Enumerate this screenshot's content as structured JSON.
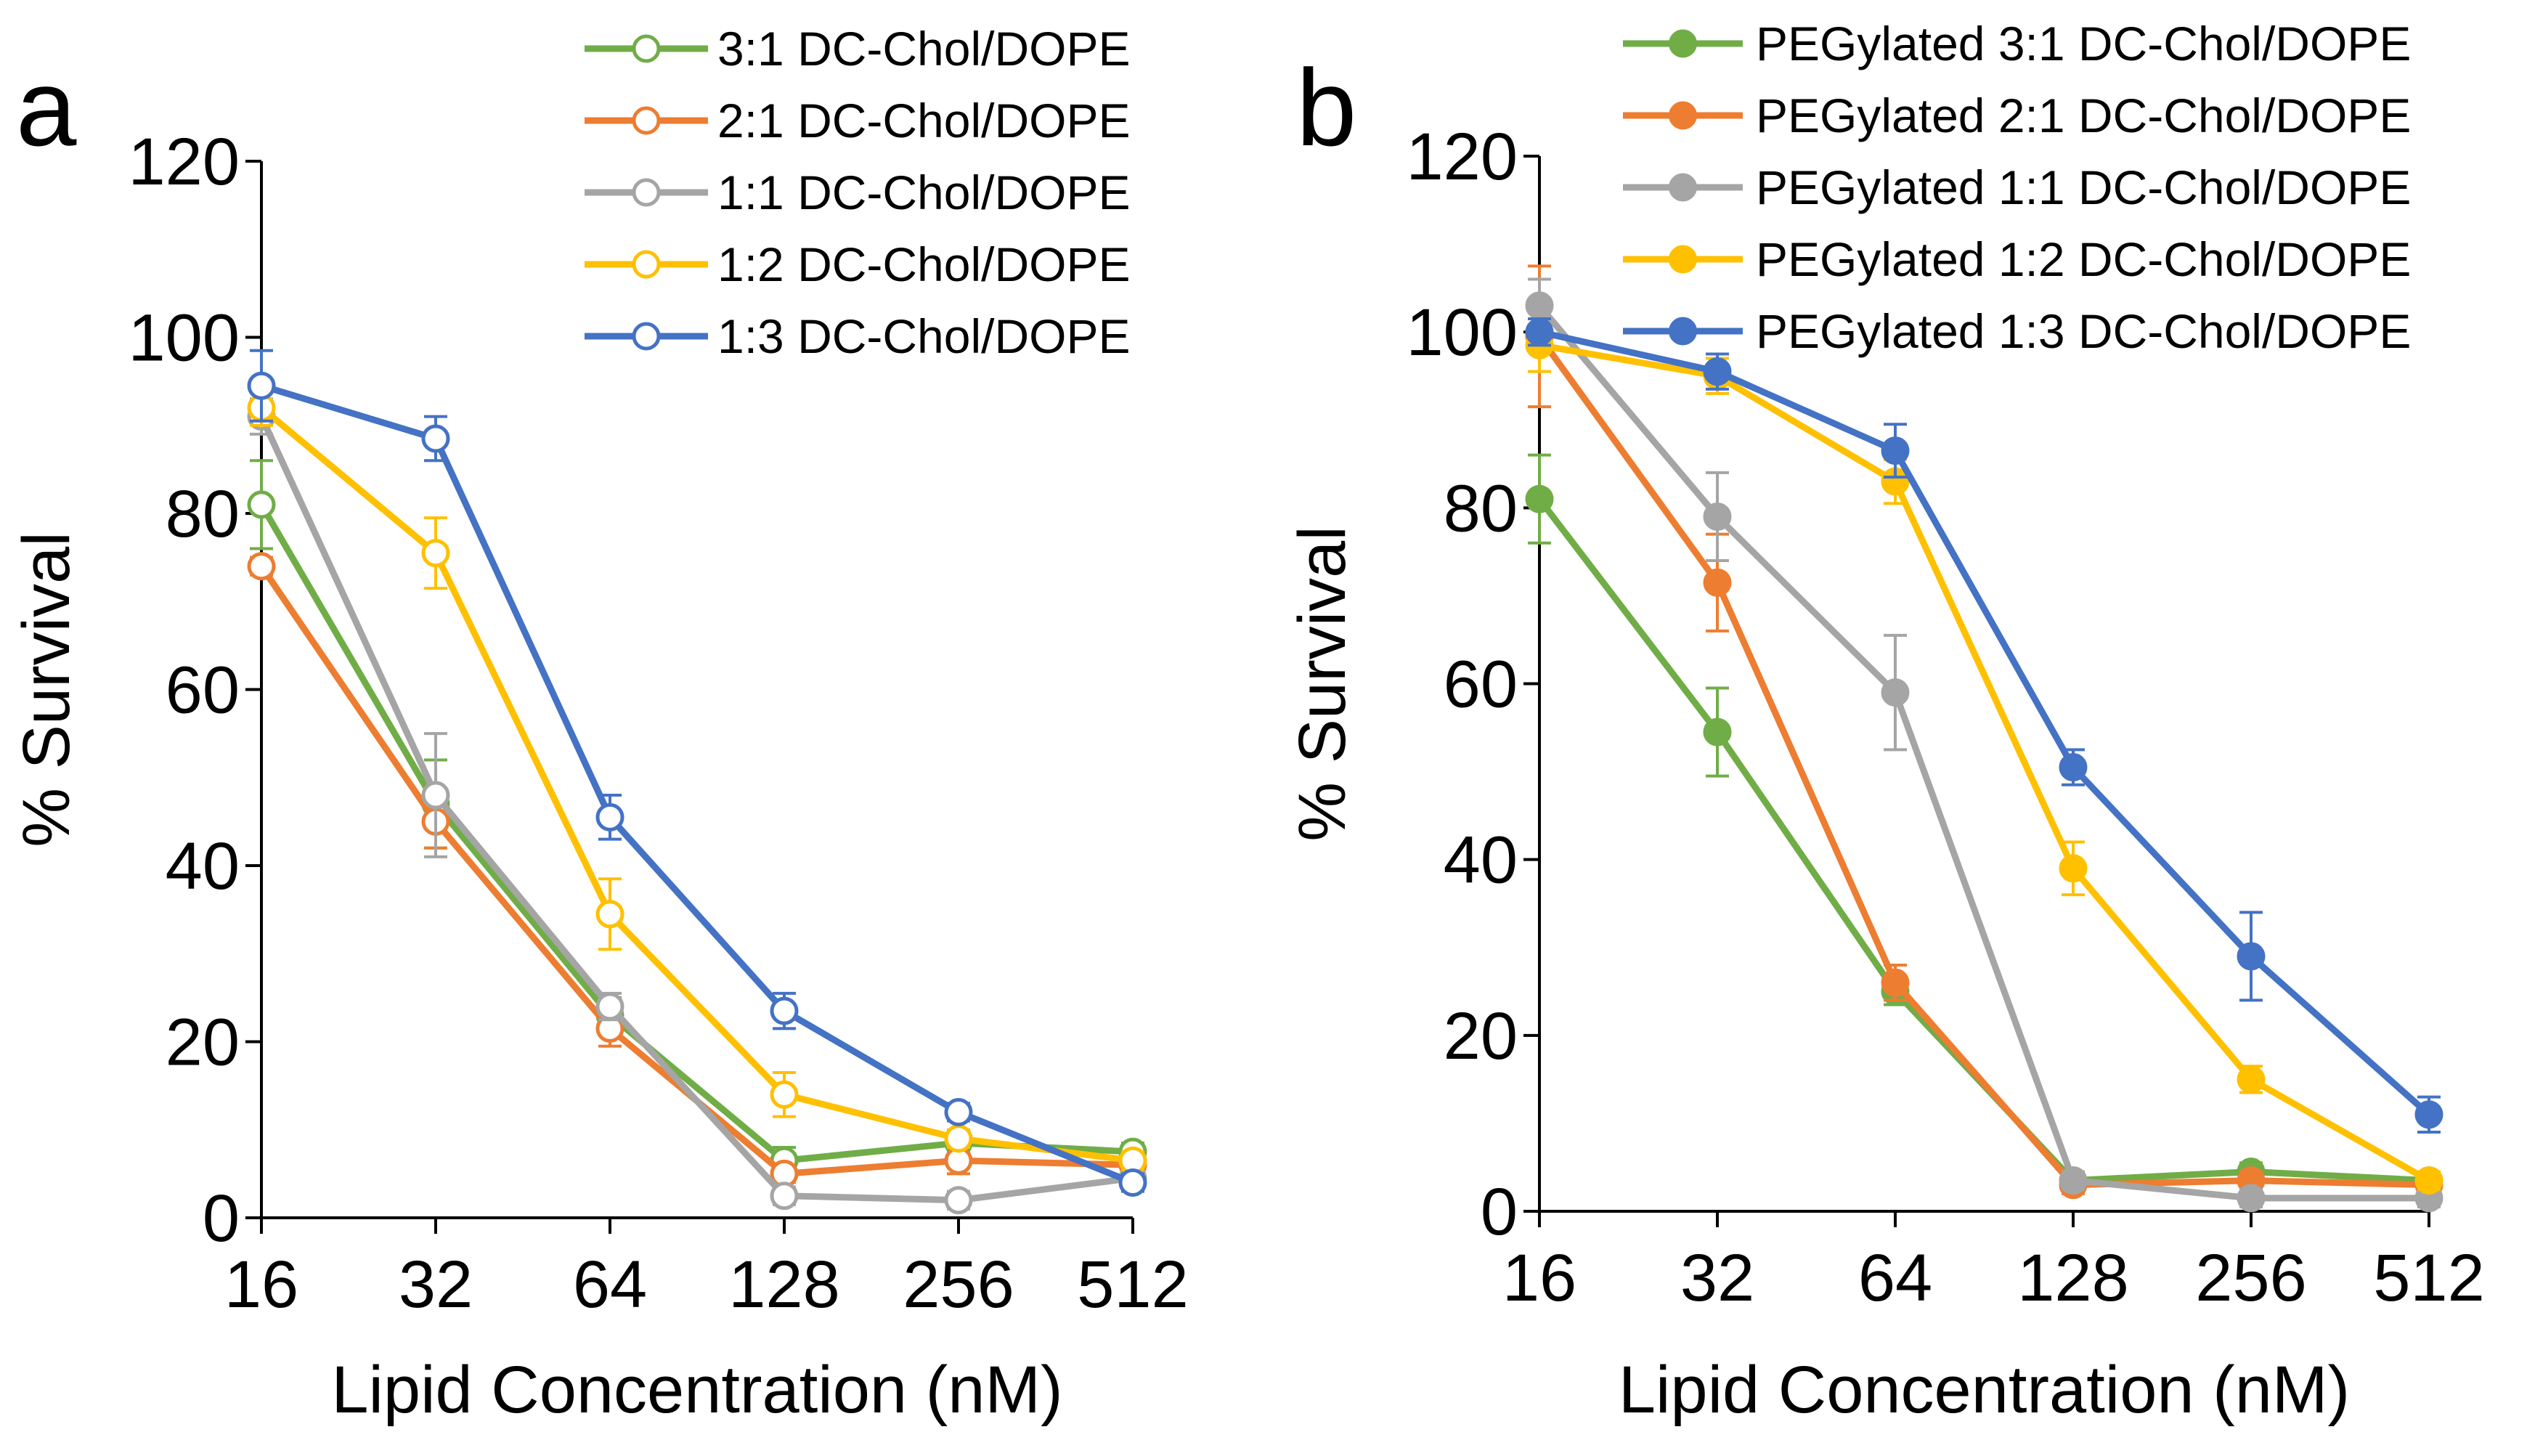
{
  "chart_data": [
    {
      "type": "line",
      "panel_label": "a",
      "marker": "open-circle",
      "xlabel": "Lipid Concentration (nM)",
      "ylabel": "% Survival",
      "categories": [
        "16",
        "32",
        "64",
        "128",
        "256",
        "512"
      ],
      "yticks": [
        "0",
        "20",
        "40",
        "60",
        "80",
        "100",
        "120"
      ],
      "ylim": [
        0,
        120
      ],
      "legend_position": "top-right",
      "series": [
        {
          "name": "3:1 DC-Chol/DOPE",
          "color": "#70AD47",
          "values": [
            81,
            47,
            23,
            6.5,
            8.5,
            7.5
          ],
          "errors": [
            5,
            5,
            2,
            1.5,
            1,
            1
          ]
        },
        {
          "name": "2:1 DC-Chol/DOPE",
          "color": "#ED7D31",
          "values": [
            74,
            45,
            21.5,
            5,
            6.5,
            6
          ],
          "errors": [
            1,
            3,
            2,
            1,
            1.5,
            1
          ]
        },
        {
          "name": "1:1 DC-Chol/DOPE",
          "color": "#A5A5A5",
          "values": [
            91,
            48,
            24,
            2.5,
            2,
            4.5
          ],
          "errors": [
            2,
            7,
            1.5,
            1,
            1,
            1
          ]
        },
        {
          "name": "1:2 DC-Chol/DOPE",
          "color": "#FFC000",
          "values": [
            92,
            75.5,
            34.5,
            14,
            9,
            6.5
          ],
          "errors": [
            2,
            4,
            4,
            2.5,
            1,
            1
          ]
        },
        {
          "name": "1:3 DC-Chol/DOPE",
          "color": "#4472C4",
          "values": [
            94.5,
            88.5,
            45.5,
            23.5,
            12,
            4
          ],
          "errors": [
            4,
            2.5,
            2.5,
            2,
            1,
            1
          ]
        }
      ]
    },
    {
      "type": "line",
      "panel_label": "b",
      "marker": "filled-circle",
      "xlabel": "Lipid Concentration (nM)",
      "ylabel": "% Survival",
      "categories": [
        "16",
        "32",
        "64",
        "128",
        "256",
        "512"
      ],
      "yticks": [
        "0",
        "20",
        "40",
        "60",
        "80",
        "100",
        "120"
      ],
      "ylim": [
        0,
        120
      ],
      "legend_position": "top-right",
      "series": [
        {
          "name": "PEGylated 3:1 DC-Chol/DOPE",
          "color": "#70AD47",
          "values": [
            81,
            54.5,
            25,
            3.5,
            4.5,
            3.5
          ],
          "errors": [
            5,
            5,
            1.5,
            1,
            1,
            1
          ]
        },
        {
          "name": "PEGylated 2:1 DC-Chol/DOPE",
          "color": "#ED7D31",
          "values": [
            99.5,
            71.5,
            26,
            3,
            3.5,
            3
          ],
          "errors": [
            8,
            5.5,
            2,
            1,
            1,
            1
          ]
        },
        {
          "name": "PEGylated 1:1 DC-Chol/DOPE",
          "color": "#A5A5A5",
          "values": [
            103,
            79,
            59,
            3.5,
            1.5,
            1.5
          ],
          "errors": [
            3,
            5,
            6.5,
            1,
            1,
            1
          ]
        },
        {
          "name": "PEGylated 1:2 DC-Chol/DOPE",
          "color": "#FFC000",
          "values": [
            98.5,
            95,
            83,
            39,
            15,
            3.5
          ],
          "errors": [
            3,
            2,
            2.5,
            3,
            1.5,
            1
          ]
        },
        {
          "name": "PEGylated 1:3 DC-Chol/DOPE",
          "color": "#4472C4",
          "values": [
            100,
            95.5,
            86.5,
            50.5,
            29,
            11
          ],
          "errors": [
            1.5,
            2,
            3,
            2,
            5,
            2
          ]
        }
      ]
    }
  ]
}
